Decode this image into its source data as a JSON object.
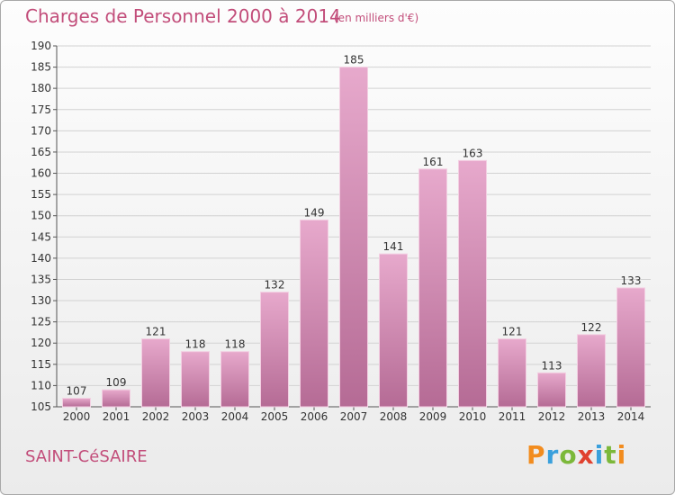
{
  "header": {
    "title": "Charges de Personnel 2000 à 2014",
    "subtitle": "(en milliers d'€)"
  },
  "footer": {
    "commune": "SAINT-CéSAIRE",
    "logo_text": "Proxiti"
  },
  "colors": {
    "bar_top": "#e7a9cc",
    "bar_bottom": "#b56b95",
    "title": "#c24d7a"
  },
  "chart_data": {
    "type": "bar",
    "categories": [
      "2000",
      "2001",
      "2002",
      "2003",
      "2004",
      "2005",
      "2006",
      "2007",
      "2008",
      "2009",
      "2010",
      "2011",
      "2012",
      "2013",
      "2014"
    ],
    "values": [
      107,
      109,
      121,
      118,
      118,
      132,
      149,
      185,
      141,
      161,
      163,
      121,
      113,
      122,
      133
    ],
    "ylim": [
      105,
      190
    ],
    "yticks": [
      105,
      110,
      115,
      120,
      125,
      130,
      135,
      140,
      145,
      150,
      155,
      160,
      165,
      170,
      175,
      180,
      185,
      190
    ],
    "grid": true,
    "legend": "none"
  }
}
